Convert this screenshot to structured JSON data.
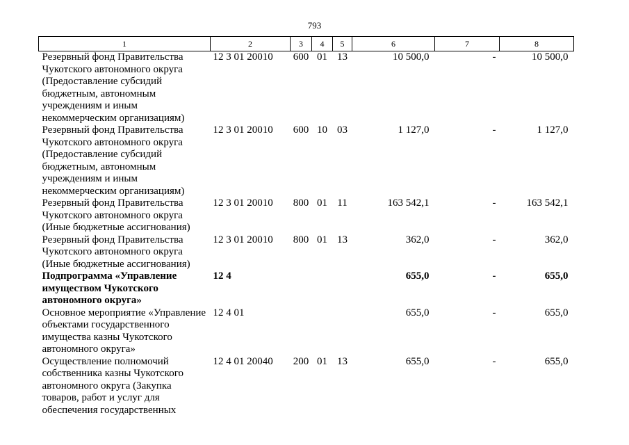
{
  "page": {
    "number": "793"
  },
  "table": {
    "header": [
      "1",
      "2",
      "3",
      "4",
      "5",
      "6",
      "7",
      "8"
    ],
    "rows": [
      {
        "name": "Резервный фонд Правительства\nЧукотского автономного округа\n(Предоставление субсидий\nбюджетным, автономным\nучреждениям и иным\nнекоммерческим организациям)",
        "code": "12 3 01 20010",
        "col3": "600",
        "col4": "01",
        "col5": "13",
        "col6": "10 500,0",
        "col7": "-",
        "col8": "10 500,0"
      },
      {
        "name": "Резервный фонд Правительства\nЧукотского автономного округа\n(Предоставление субсидий\nбюджетным, автономным\nучреждениям и иным\nнекоммерческим организациям)",
        "code": "12 3 01 20010",
        "col3": "600",
        "col4": "10",
        "col5": "03",
        "col6": "1 127,0",
        "col7": "-",
        "col8": "1 127,0"
      },
      {
        "name": "Резервный фонд Правительства\nЧукотского автономного округа\n(Иные бюджетные ассигнования)",
        "code": "12 3 01 20010",
        "col3": "800",
        "col4": "01",
        "col5": "11",
        "col6": "163 542,1",
        "col7": "-",
        "col8": "163 542,1"
      },
      {
        "name": "Резервный фонд Правительства\nЧукотского автономного округа\n(Иные бюджетные ассигнования)",
        "code": "12 3 01 20010",
        "col3": "800",
        "col4": "01",
        "col5": "13",
        "col6": "362,0",
        "col7": "-",
        "col8": "362,0"
      },
      {
        "name": "Подпрограмма «Управление\nимуществом Чукотского\nавтономного округа»",
        "code": "12 4",
        "col3": "",
        "col4": "",
        "col5": "",
        "col6": "655,0",
        "col7": "-",
        "col8": "655,0"
      },
      {
        "name": "Основное мероприятие «Управление\nобъектами государственного\nимущества казны Чукотского\nавтономного округа»",
        "code": "12 4 01",
        "col3": "",
        "col4": "",
        "col5": "",
        "col6": "655,0",
        "col7": "-",
        "col8": "655,0"
      },
      {
        "name": "Осуществление полномочий\nсобственника казны Чукотского\nавтономного округа (Закупка\nтоваров, работ и услуг для\nобеспечения государственных",
        "code": "12 4 01 20040",
        "col3": "200",
        "col4": "01",
        "col5": "13",
        "col6": "655,0",
        "col7": "-",
        "col8": "655,0"
      }
    ]
  }
}
